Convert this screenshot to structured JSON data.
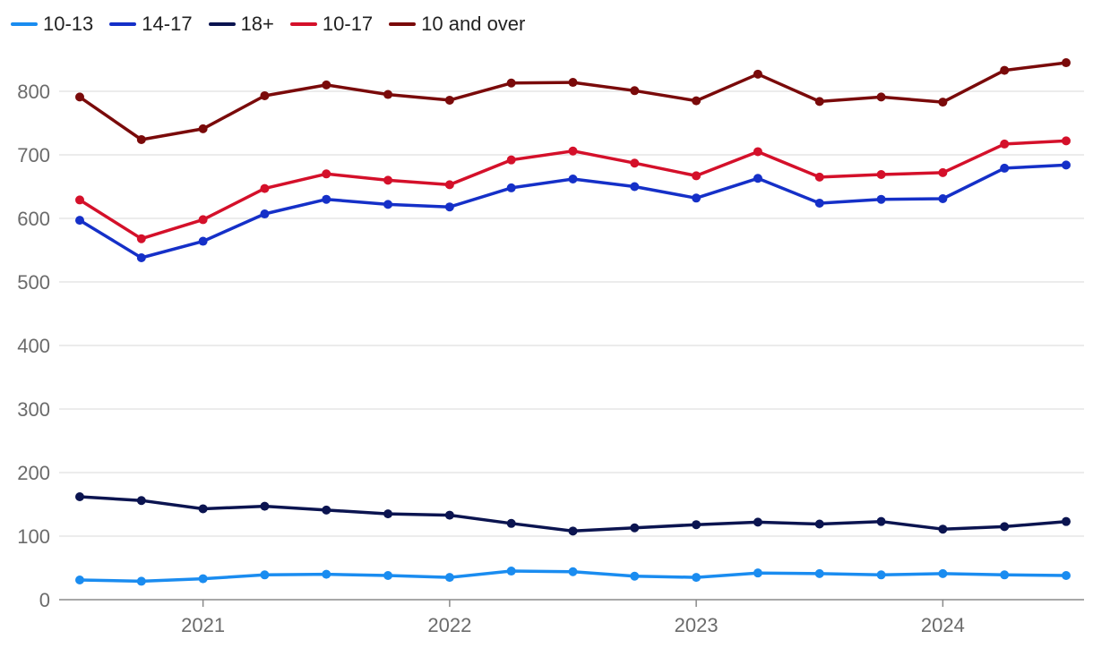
{
  "chart_data": {
    "type": "line",
    "title": "",
    "xlabel": "",
    "ylabel": "",
    "ylim": [
      0,
      850
    ],
    "y_ticks": [
      0,
      100,
      200,
      300,
      400,
      500,
      600,
      700,
      800
    ],
    "x_tick_labels": [
      "2021",
      "2022",
      "2023",
      "2024"
    ],
    "x_tick_positions": [
      2021,
      2022,
      2023,
      2024
    ],
    "x": [
      2020.5,
      2020.75,
      2021.0,
      2021.25,
      2021.5,
      2021.75,
      2022.0,
      2022.25,
      2022.5,
      2022.75,
      2023.0,
      2023.25,
      2023.5,
      2023.75,
      2024.0,
      2024.25,
      2024.5
    ],
    "grid": "horizontal",
    "legend_position": "top-left",
    "series": [
      {
        "name": "10-13",
        "color": "#1a8cf0",
        "values": [
          31,
          29,
          33,
          39,
          40,
          38,
          35,
          45,
          44,
          37,
          35,
          42,
          41,
          39,
          41,
          39,
          38
        ]
      },
      {
        "name": "14-17",
        "color": "#1530c8",
        "values": [
          597,
          538,
          564,
          607,
          630,
          622,
          618,
          648,
          662,
          650,
          632,
          663,
          624,
          630,
          631,
          679,
          684
        ]
      },
      {
        "name": "18+",
        "color": "#0b1450",
        "values": [
          162,
          156,
          143,
          147,
          141,
          135,
          133,
          120,
          108,
          113,
          118,
          122,
          119,
          123,
          111,
          115,
          123
        ]
      },
      {
        "name": "10-17",
        "color": "#d4102a",
        "values": [
          629,
          568,
          598,
          647,
          670,
          660,
          653,
          692,
          706,
          687,
          667,
          705,
          665,
          669,
          672,
          717,
          722
        ]
      },
      {
        "name": "10 and over",
        "color": "#7a0a0a",
        "values": [
          791,
          724,
          741,
          793,
          810,
          795,
          786,
          813,
          814,
          801,
          785,
          827,
          784,
          791,
          783,
          833,
          845
        ]
      }
    ]
  }
}
